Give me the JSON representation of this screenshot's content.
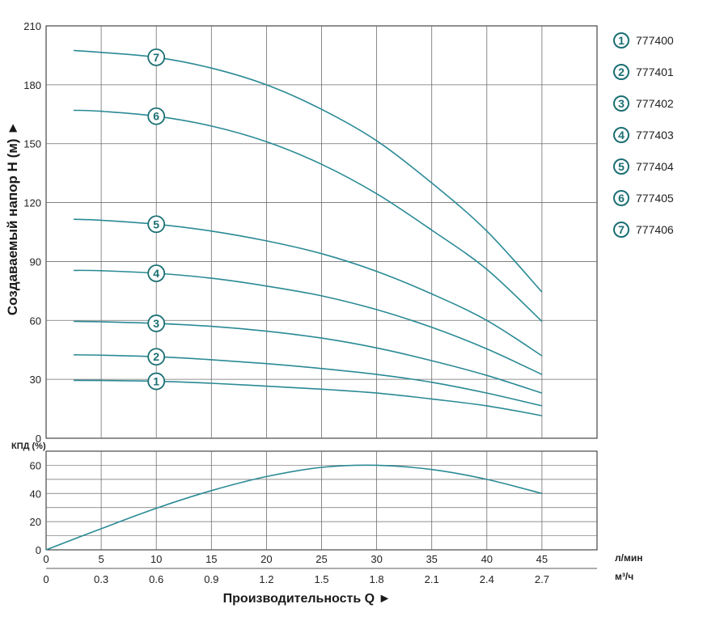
{
  "chart_data": [
    {
      "type": "line",
      "ylabel": "Создаваемый напор H (м) ►",
      "ylim": [
        0,
        210
      ],
      "yticks": [
        "0",
        "30",
        "60",
        "90",
        "120",
        "150",
        "180",
        "210"
      ],
      "grid": true,
      "legend_placement": "right",
      "series": [
        {
          "name": "777400",
          "marker": "1",
          "color": "#2a8a95",
          "x": [
            2.5,
            5,
            10,
            15,
            20,
            25,
            30,
            35,
            40,
            45
          ],
          "y": [
            29.5,
            29.4,
            29,
            28,
            26.5,
            25,
            23,
            20,
            16.5,
            11.5
          ]
        },
        {
          "name": "777401",
          "marker": "2",
          "color": "#2a8a95",
          "x": [
            2.5,
            5,
            10,
            15,
            20,
            25,
            30,
            35,
            40,
            45
          ],
          "y": [
            42.5,
            42.3,
            41.5,
            40,
            38,
            35.5,
            32.5,
            28.5,
            23,
            16.5
          ]
        },
        {
          "name": "777402",
          "marker": "3",
          "color": "#2a8a95",
          "x": [
            2.5,
            5,
            10,
            15,
            20,
            25,
            30,
            35,
            40,
            45
          ],
          "y": [
            59.5,
            59.3,
            58.5,
            57,
            54.5,
            51,
            46,
            39.5,
            32,
            23
          ]
        },
        {
          "name": "777403",
          "marker": "4",
          "color": "#2a8a95",
          "x": [
            2.5,
            5,
            10,
            15,
            20,
            25,
            30,
            35,
            40,
            45
          ],
          "y": [
            85.5,
            85.3,
            84,
            81.5,
            77.5,
            72.5,
            65.5,
            56.5,
            45.5,
            32.5
          ]
        },
        {
          "name": "777404",
          "marker": "5",
          "color": "#2a8a95",
          "x": [
            2.5,
            5,
            10,
            15,
            20,
            25,
            30,
            35,
            40,
            45
          ],
          "y": [
            111.5,
            111,
            109,
            105.5,
            100.5,
            94,
            85,
            73.5,
            60,
            42
          ]
        },
        {
          "name": "777405",
          "marker": "6",
          "color": "#2a8a95",
          "x": [
            2.5,
            5,
            10,
            15,
            20,
            25,
            30,
            35,
            40,
            45
          ],
          "y": [
            167,
            166.5,
            164,
            159,
            151,
            139.5,
            124.5,
            106,
            86,
            59.5
          ]
        },
        {
          "name": "777406",
          "marker": "7",
          "color": "#2a8a95",
          "x": [
            2.5,
            5,
            10,
            15,
            20,
            25,
            30,
            35,
            40,
            45
          ],
          "y": [
            197.5,
            196.5,
            194,
            188.5,
            180,
            167.5,
            151.5,
            130,
            105.5,
            74.5
          ]
        }
      ]
    },
    {
      "type": "line",
      "ylabel": "КПД (%)",
      "ylim": [
        0,
        70
      ],
      "yticks": [
        "0",
        "20",
        "40",
        "60"
      ],
      "grid": true,
      "series": [
        {
          "color": "#2a8a95",
          "x": [
            0,
            5,
            10,
            15,
            20,
            25,
            30,
            35,
            40,
            45
          ],
          "y": [
            0,
            15,
            29.5,
            42,
            52,
            58.5,
            60,
            57,
            50,
            40
          ]
        }
      ]
    }
  ],
  "x_axis": {
    "xlabel": "Производительность Q ►",
    "unit_lmin": "л/мин",
    "unit_m3h": "м³/ч",
    "ticks_lmin": [
      "0",
      "5",
      "10",
      "15",
      "20",
      "25",
      "30",
      "35",
      "40",
      "45"
    ],
    "ticks_m3h": [
      "0",
      "0.3",
      "0.6",
      "0.9",
      "1.2",
      "1.5",
      "1.8",
      "2.1",
      "2.4",
      "2.7"
    ],
    "xlim": [
      0,
      50
    ]
  },
  "legend": [
    {
      "marker": "1",
      "label": "777400"
    },
    {
      "marker": "2",
      "label": "777401"
    },
    {
      "marker": "3",
      "label": "777402"
    },
    {
      "marker": "4",
      "label": "777403"
    },
    {
      "marker": "5",
      "label": "777404"
    },
    {
      "marker": "6",
      "label": "777405"
    },
    {
      "marker": "7",
      "label": "777406"
    }
  ],
  "colors": {
    "curve": "#2a8a95",
    "marker": "#1b6f73",
    "grid": "#6e6e6e",
    "axis": "#222222"
  }
}
